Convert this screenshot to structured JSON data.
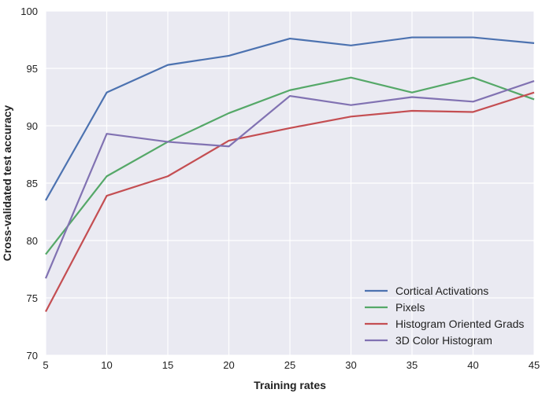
{
  "chart_data": {
    "type": "line",
    "title": "",
    "xlabel": "Training rates",
    "ylabel": "Cross-validated test accuracy",
    "x": [
      5,
      10,
      15,
      20,
      25,
      30,
      35,
      40,
      45
    ],
    "xlim": [
      5,
      45
    ],
    "ylim": [
      70,
      100
    ],
    "xticks": [
      5,
      10,
      15,
      20,
      25,
      30,
      35,
      40,
      45
    ],
    "yticks": [
      70,
      75,
      80,
      85,
      90,
      95,
      100
    ],
    "grid": true,
    "legend_position": "bottom-right",
    "background_color": "#eaeaf2",
    "series": [
      {
        "name": "Cortical Activations",
        "color": "#4c72b0",
        "values": [
          83.5,
          92.9,
          95.3,
          96.1,
          97.6,
          97.0,
          97.7,
          97.7,
          97.2
        ]
      },
      {
        "name": "Pixels",
        "color": "#55a868",
        "values": [
          78.8,
          85.6,
          88.6,
          91.1,
          93.1,
          94.2,
          92.9,
          94.2,
          92.3
        ]
      },
      {
        "name": "Histogram Oriented Grads",
        "color": "#c44e52",
        "values": [
          73.8,
          83.9,
          85.6,
          88.7,
          89.8,
          90.8,
          91.3,
          91.2,
          92.9
        ]
      },
      {
        "name": "3D Color Histogram",
        "color": "#8172b2",
        "values": [
          76.7,
          89.3,
          88.6,
          88.2,
          92.6,
          91.8,
          92.5,
          92.1,
          93.9
        ]
      }
    ]
  }
}
